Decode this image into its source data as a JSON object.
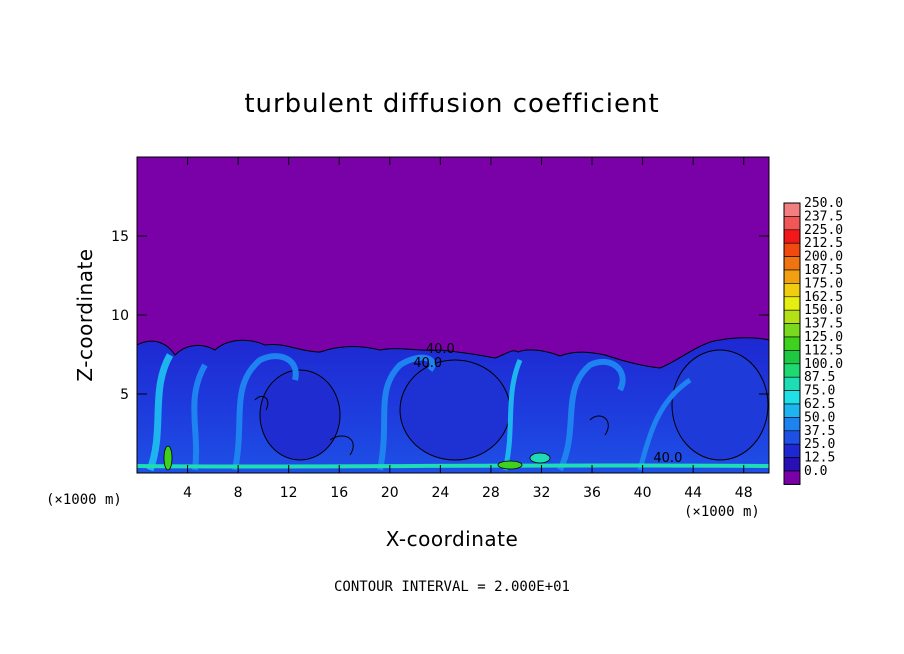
{
  "chart_data": {
    "type": "heatmap",
    "title": "turbulent diffusion coefficient",
    "xlabel": "X-coordinate",
    "ylabel": "Z-coordinate",
    "x_unit": "(×1000 m)",
    "y_unit": "(×1000 m)",
    "xlim": [
      0,
      50
    ],
    "ylim": [
      0,
      20
    ],
    "x_ticks": [
      4,
      8,
      12,
      16,
      20,
      24,
      28,
      32,
      36,
      40,
      44,
      48
    ],
    "y_ticks": [
      5,
      10,
      15
    ],
    "footer": "CONTOUR INTERVAL = 2.000E+01",
    "contour_labels": [
      {
        "x": 24,
        "z": 7.6,
        "text": "40.0"
      },
      {
        "x": 23,
        "z": 6.7,
        "text": "40.0"
      },
      {
        "x": 42,
        "z": 0.7,
        "text": "40.0"
      }
    ],
    "colorbar": {
      "labels": [
        "250.0",
        "237.5",
        "225.0",
        "212.5",
        "200.0",
        "187.5",
        "175.0",
        "162.5",
        "150.0",
        "137.5",
        "125.0",
        "112.5",
        "100.0",
        "87.5",
        "75.0",
        "62.5",
        "50.0",
        "37.5",
        "25.0",
        "12.5",
        "0.0"
      ],
      "colors": [
        "#f27f7f",
        "#f25757",
        "#f01818",
        "#f04a10",
        "#f07510",
        "#f0a010",
        "#f0cd10",
        "#e6f010",
        "#b4e016",
        "#7ad81e",
        "#3ed21e",
        "#1ec840",
        "#1ed870",
        "#1edcb4",
        "#1ee0e6",
        "#1eb4f0",
        "#1e82f0",
        "#1e50e6",
        "#1e28d2",
        "#2810b4",
        "#7a00a8"
      ]
    },
    "field_summary": "Near-zero values (purple) above z≈8; turbulent layer of 12.5–62.5 (blue) below z≈8, with local maxima up to ~112.5 near the surface at x≈2 and x≈30"
  }
}
